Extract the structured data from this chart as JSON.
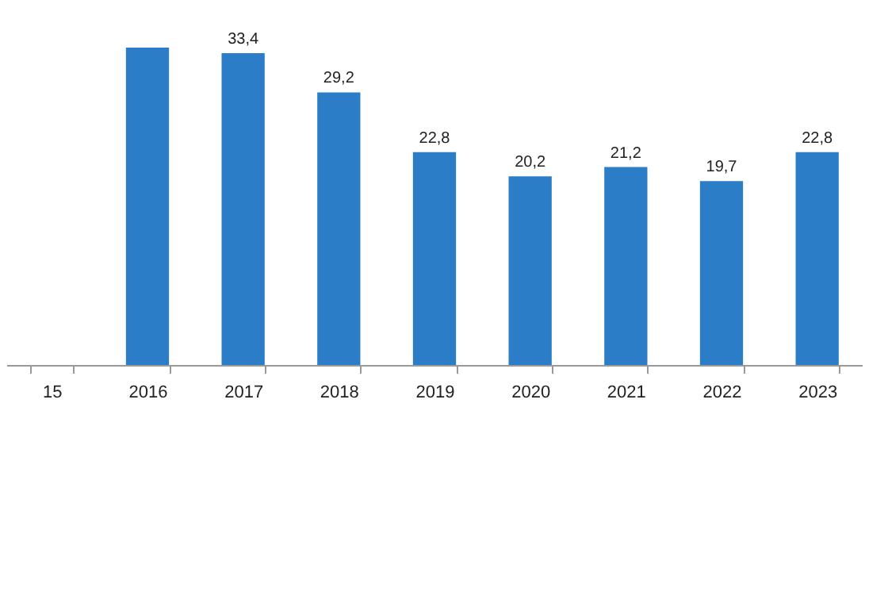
{
  "chart_data": {
    "type": "bar",
    "categories": [
      "15",
      "2016",
      "2017",
      "2018",
      "2019",
      "2020",
      "2021",
      "2022",
      "2023"
    ],
    "values": [
      null,
      34,
      33.4,
      29.2,
      22.8,
      20.2,
      21.2,
      19.7,
      22.8
    ],
    "value_labels": [
      null,
      null,
      "33,4",
      "29,2",
      "22,8",
      "20,2",
      "21,2",
      "19,7",
      "22,8"
    ],
    "color": "#2a7dc6",
    "grid": false
  }
}
